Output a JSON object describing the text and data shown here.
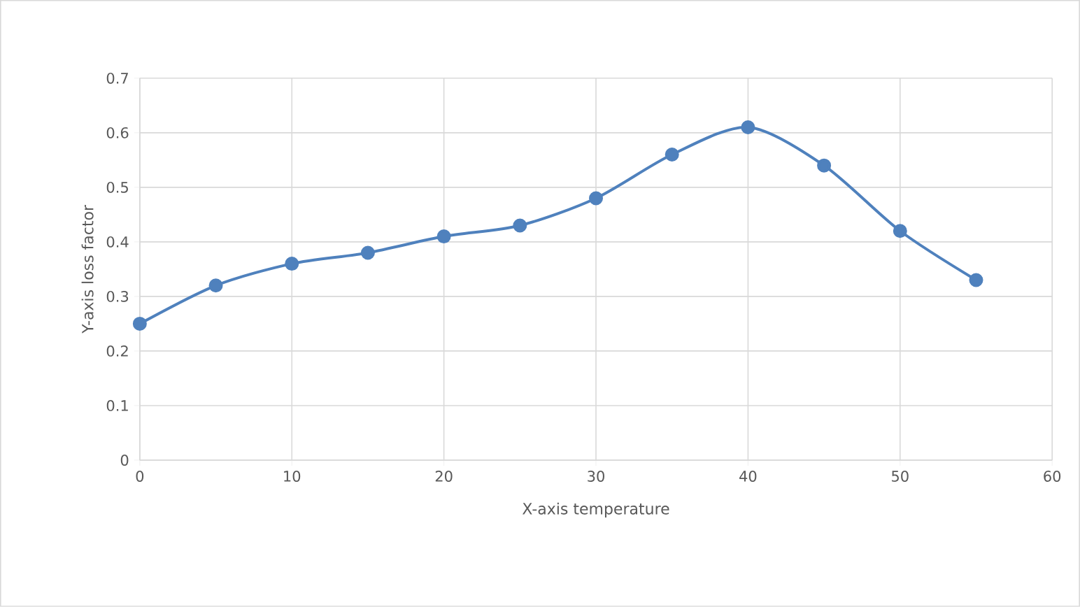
{
  "chart_data": {
    "type": "line",
    "xlabel": "X-axis temperature",
    "ylabel": "Y-axis loss factor",
    "x": [
      0,
      5,
      10,
      15,
      20,
      25,
      30,
      35,
      40,
      45,
      50,
      55
    ],
    "series": [
      {
        "color": "#4f81bd",
        "values": [
          0.25,
          0.32,
          0.36,
          0.38,
          0.41,
          0.43,
          0.48,
          0.56,
          0.61,
          0.54,
          0.42,
          0.33
        ]
      }
    ],
    "xlim": [
      0,
      60
    ],
    "xticks": [
      0,
      10,
      20,
      30,
      40,
      50,
      60
    ],
    "ylim": [
      0,
      0.7
    ],
    "yticks": [
      0,
      0.1,
      0.2,
      0.3,
      0.4,
      0.5,
      0.6,
      0.7
    ],
    "grid": true,
    "marker": "circle",
    "line_style": "solid"
  }
}
